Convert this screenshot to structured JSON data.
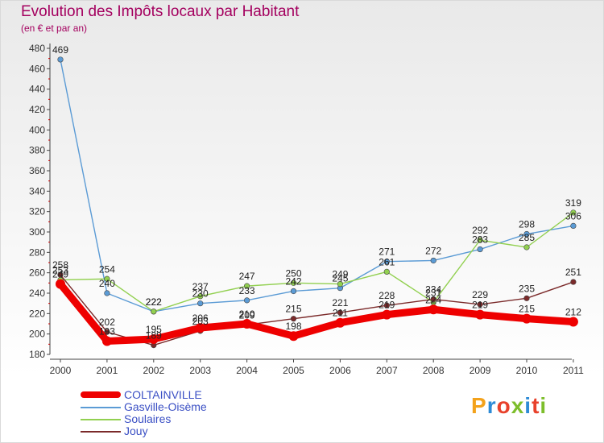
{
  "header": {
    "title": "Evolution des Impôts locaux par Habitant",
    "subtitle": "(en € et par an)"
  },
  "logo": {
    "text": "Proxiti",
    "letter_colors": [
      "#f3a21b",
      "#2e8bd6",
      "#e8412b",
      "#7dbe2b",
      "#2e8bd6",
      "#e8412b",
      "#7dbe2b"
    ]
  },
  "chart_data": {
    "type": "line",
    "title": "Evolution des Impôts locaux par Habitant",
    "subtitle": "(en € et par an)",
    "x": [
      "2000",
      "2001",
      "2002",
      "2003",
      "2004",
      "2005",
      "2006",
      "2007",
      "2008",
      "2009",
      "2010",
      "2011"
    ],
    "ylim": [
      180,
      480
    ],
    "yticks": [
      180,
      200,
      220,
      240,
      260,
      280,
      300,
      320,
      340,
      360,
      380,
      400,
      420,
      440,
      460,
      480
    ],
    "grid": false,
    "legend_position": "bottom-left",
    "series": [
      {
        "name": "COLTAINVILLE",
        "color": "#ee0000",
        "values": [
          249,
          193,
          195,
          206,
          210,
          198,
          211,
          219,
          224,
          219,
          215,
          212
        ]
      },
      {
        "name": "Gasville-Oisème",
        "color": "#5b9bd5",
        "values": [
          469,
          240,
          222,
          230,
          233,
          242,
          245,
          271,
          272,
          283,
          298,
          306
        ]
      },
      {
        "name": "Soulaires",
        "color": "#92d050",
        "values": [
          253,
          254,
          222,
          237,
          247,
          250,
          249,
          261,
          231,
          292,
          285,
          319
        ]
      },
      {
        "name": "Jouy",
        "color": "#7b2a2a",
        "values": [
          258,
          202,
          189,
          203,
          209,
          215,
          221,
          228,
          234,
          229,
          235,
          251
        ]
      }
    ]
  }
}
